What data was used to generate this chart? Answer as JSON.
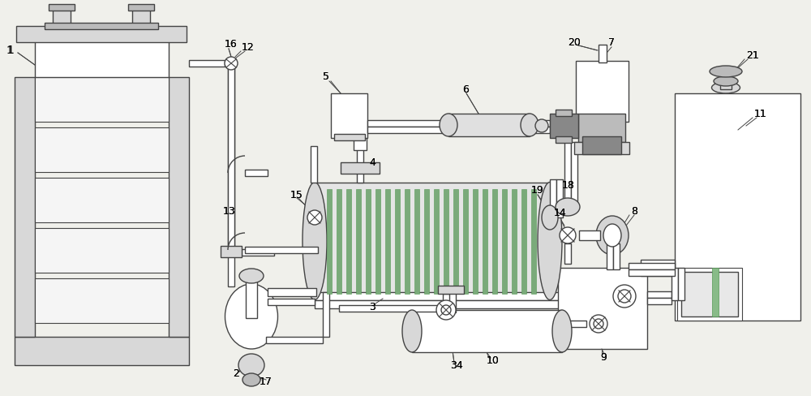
{
  "bg_color": "#f0f0eb",
  "lc": "#444444",
  "lw": 1.0,
  "white": "#ffffff",
  "lgray": "#d8d8d8",
  "mgray": "#bbbbbb",
  "dgray": "#888888",
  "green": "#7aaa7a",
  "dgreen": "#559955"
}
